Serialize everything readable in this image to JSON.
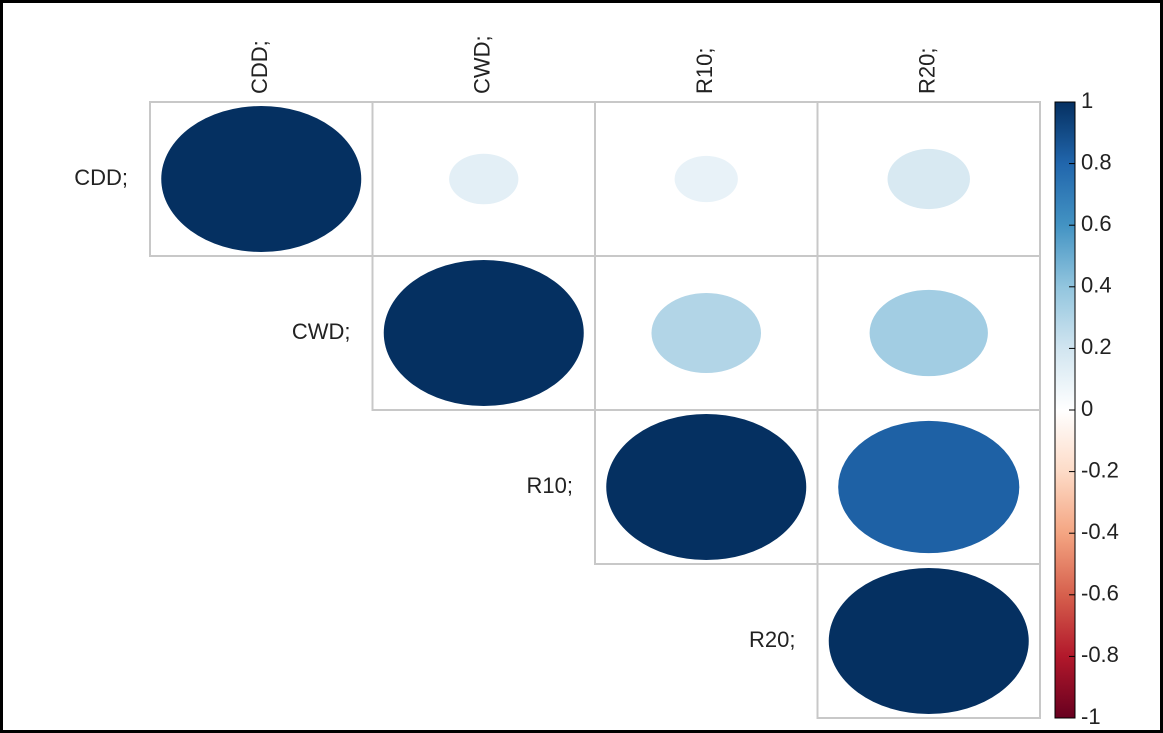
{
  "chart_data": {
    "type": "corrplot",
    "labels": [
      "CDD;",
      "CWD;",
      "R10;",
      "R20;"
    ],
    "matrix": [
      [
        1,
        0.12,
        0.1,
        0.17
      ],
      [
        null,
        1,
        0.3,
        0.35
      ],
      [
        null,
        null,
        1,
        0.82
      ],
      [
        null,
        null,
        null,
        1
      ]
    ],
    "colorbar_lim": [
      -1,
      1
    ],
    "colorbar_ticks": [
      1,
      0.8,
      0.6,
      0.4,
      0.2,
      0,
      -0.2,
      -0.4,
      -0.6,
      -0.8,
      -1
    ],
    "colorscale": [
      "#053061",
      "#2166AC",
      "#4393C3",
      "#92C5DE",
      "#D1E5F0",
      "#FFFFFF",
      "#FDDBC7",
      "#F4A582",
      "#D6604D",
      "#B2182B",
      "#67001F"
    ]
  }
}
